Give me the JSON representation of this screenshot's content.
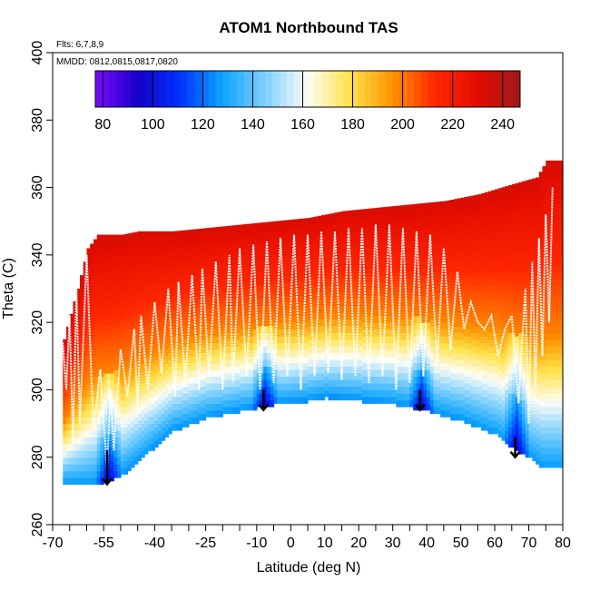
{
  "chart_data": {
    "type": "heatmap",
    "title": "ATOM1 Northbound TAS",
    "flights_note": "Flts: 6,7,8,9",
    "dates_note": "MMDD: 0812,0815,0817,0820",
    "xlabel": "Latitude (deg N)",
    "ylabel": "Theta (C)",
    "xlim": [
      -70,
      80
    ],
    "ylim": [
      260,
      400
    ],
    "x_tick_labels": [
      -70,
      -55,
      -40,
      -25,
      -10,
      0,
      10,
      20,
      30,
      40,
      50,
      60,
      70,
      80
    ],
    "x_minor_ticks": [
      -65,
      -60,
      -50,
      -45,
      -35,
      -30,
      -20,
      -15,
      -5,
      5,
      15,
      25,
      35,
      45,
      55,
      65,
      75
    ],
    "y_ticks": [
      260,
      280,
      300,
      320,
      340,
      360,
      380,
      400
    ],
    "colorbar": {
      "ticks": [
        80,
        100,
        120,
        140,
        160,
        180,
        200,
        220,
        240
      ],
      "range": [
        77,
        247
      ],
      "colors": [
        "#7b0bff",
        "#1500c8",
        "#0033ff",
        "#0ea4ff",
        "#7fd0ff",
        "#fdfdf6",
        "#ffe24a",
        "#ff9300",
        "#ff2600",
        "#e30c00",
        "#9e1a1a"
      ]
    },
    "fields": {
      "top_boundary": [
        [
          -67,
          315
        ],
        [
          -63,
          330
        ],
        [
          -60,
          342
        ],
        [
          -57,
          346
        ],
        [
          -50,
          346
        ],
        [
          -45,
          347
        ],
        [
          -35,
          347
        ],
        [
          -25,
          348
        ],
        [
          -15,
          349
        ],
        [
          -5,
          350
        ],
        [
          5,
          351
        ],
        [
          15,
          353
        ],
        [
          25,
          354
        ],
        [
          35,
          355
        ],
        [
          45,
          356
        ],
        [
          55,
          358
        ],
        [
          65,
          361
        ],
        [
          72,
          363
        ],
        [
          75,
          368
        ]
      ],
      "bottom_boundary": [
        [
          -67,
          272
        ],
        [
          -60,
          272
        ],
        [
          -55,
          273
        ],
        [
          -50,
          275
        ],
        [
          -42,
          282
        ],
        [
          -35,
          288
        ],
        [
          -25,
          292
        ],
        [
          -15,
          294
        ],
        [
          -5,
          296
        ],
        [
          5,
          297
        ],
        [
          10,
          298
        ],
        [
          20,
          297
        ],
        [
          30,
          296
        ],
        [
          40,
          294
        ],
        [
          50,
          291
        ],
        [
          60,
          287
        ],
        [
          65,
          283
        ],
        [
          70,
          280
        ],
        [
          74,
          277
        ],
        [
          80,
          277
        ]
      ],
      "warm_color_anchor": 225
    },
    "series": [
      {
        "name": "Flight track",
        "x": [
          -67,
          -66,
          -65,
          -64,
          -63,
          -62,
          -60,
          -58,
          -56,
          -54,
          -53,
          -52,
          -50,
          -48,
          -46,
          -45,
          -44,
          -42,
          -40,
          -38,
          -36,
          -34,
          -33,
          -31,
          -29,
          -27,
          -26,
          -24,
          -22,
          -20,
          -18,
          -17,
          -15,
          -13,
          -11,
          -9,
          -7,
          -5,
          -3,
          -1,
          1,
          3,
          5,
          7,
          9,
          11,
          13,
          15,
          17,
          19,
          21,
          23,
          25,
          27,
          29,
          31,
          33,
          35,
          37,
          39,
          41,
          43,
          45,
          47,
          49,
          51,
          53,
          55,
          57,
          59,
          61,
          63,
          65,
          67,
          69,
          70,
          71,
          72,
          73,
          74,
          75,
          76,
          77
        ],
        "y": [
          314,
          300,
          322,
          284,
          330,
          290,
          340,
          288,
          306,
          276,
          300,
          282,
          312,
          298,
          318,
          294,
          322,
          300,
          326,
          305,
          330,
          298,
          332,
          302,
          334,
          300,
          336,
          304,
          338,
          300,
          340,
          302,
          342,
          304,
          343,
          300,
          344,
          302,
          345,
          304,
          346,
          300,
          346,
          304,
          347,
          305,
          347,
          303,
          348,
          304,
          348,
          302,
          349,
          304,
          349,
          300,
          348,
          302,
          347,
          304,
          346,
          308,
          342,
          312,
          335,
          318,
          326,
          320,
          318,
          322,
          310,
          318,
          322,
          296,
          330,
          290,
          338,
          300,
          345,
          310,
          352,
          320,
          360
        ]
      }
    ],
    "annotations": [
      {
        "type": "arrow",
        "x": -54,
        "y_top": 282,
        "y_bottom": 272
      },
      {
        "type": "arrow",
        "x": -8,
        "y_top": 300,
        "y_bottom": 294
      },
      {
        "type": "arrow",
        "x": 38,
        "y_top": 300,
        "y_bottom": 294
      },
      {
        "type": "arrow",
        "x": 66,
        "y_top": 286,
        "y_bottom": 280
      }
    ]
  }
}
